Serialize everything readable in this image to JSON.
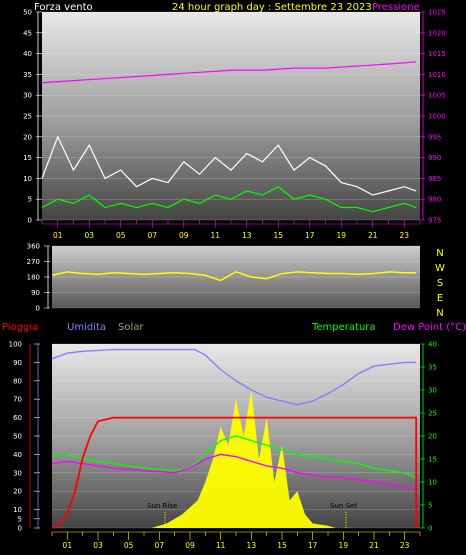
{
  "header": {
    "wind_label": "Forza vento",
    "title": "24 hour graph day : Settembre 23 2023",
    "pressure_label": "Pressione"
  },
  "colors": {
    "wind_gust": "#ffffff",
    "wind_avg": "#00ff00",
    "pressure": "#ff00ff",
    "direction": "#ffff00",
    "rain": "#ff0000",
    "humidity": "#8080ff",
    "temperature": "#00ff00",
    "dewpoint": "#ff00ff",
    "solar": "#ffff00"
  },
  "compass": [
    "N",
    "W",
    "S",
    "E",
    "N"
  ],
  "x_ticks": [
    "01",
    "03",
    "05",
    "07",
    "09",
    "11",
    "13",
    "15",
    "17",
    "19",
    "21",
    "23"
  ],
  "sun_labels": {
    "rise": "Sun Rise",
    "set": "Sun Set"
  },
  "legend": {
    "rain": "Pioggia",
    "humidity": "Umidita",
    "solar": "Solar",
    "temperature": "Temperatura",
    "dewpoint": "Dew Point (°C)"
  },
  "chart_data": [
    {
      "type": "line",
      "x_hours": [
        0,
        23.75
      ],
      "left_axis": {
        "ticks": [
          0,
          5,
          10,
          15,
          20,
          25,
          30,
          35,
          40,
          45,
          50
        ],
        "ylim": [
          0,
          50
        ]
      },
      "right_axis": {
        "ticks": [
          975,
          980,
          985,
          990,
          995,
          1000,
          1005,
          1010,
          1015,
          1020,
          1025
        ],
        "ylim": [
          975,
          1025
        ]
      },
      "series": [
        {
          "name": "Pressione",
          "x": [
            0,
            2,
            4,
            6,
            8,
            10,
            12,
            14,
            16,
            18,
            20,
            22,
            23.75
          ],
          "values": [
            1008,
            1008.5,
            1009,
            1009.5,
            1010,
            1010.5,
            1011,
            1011,
            1011.5,
            1011.5,
            1012,
            1012.5,
            1013
          ]
        },
        {
          "values_hint": "wind gust",
          "x": [
            0,
            1,
            2,
            3,
            4,
            5,
            6,
            7,
            8,
            9,
            10,
            11,
            12,
            13,
            14,
            15,
            16,
            17,
            18,
            19,
            20,
            21,
            22,
            23,
            23.75
          ],
          "values": [
            10,
            20,
            12,
            18,
            10,
            12,
            8,
            10,
            9,
            14,
            11,
            15,
            12,
            16,
            14,
            18,
            12,
            15,
            13,
            9,
            8,
            6,
            7,
            8,
            7
          ]
        },
        {
          "values_hint": "wind average",
          "x": [
            0,
            1,
            2,
            3,
            4,
            5,
            6,
            7,
            8,
            9,
            10,
            11,
            12,
            13,
            14,
            15,
            16,
            17,
            18,
            19,
            20,
            21,
            22,
            23,
            23.75
          ],
          "values": [
            3,
            5,
            4,
            6,
            3,
            4,
            3,
            4,
            3,
            5,
            4,
            6,
            5,
            7,
            6,
            8,
            5,
            6,
            5,
            3,
            3,
            2,
            3,
            4,
            3
          ]
        }
      ]
    },
    {
      "type": "scatter",
      "left_axis": {
        "ticks": [
          0,
          90,
          180,
          270,
          360
        ],
        "ylim": [
          0,
          360
        ]
      },
      "series": [
        {
          "values_hint": "wind direction",
          "x": [
            0,
            1,
            2,
            3,
            4,
            5,
            6,
            7,
            8,
            9,
            10,
            11,
            12,
            13,
            14,
            15,
            16,
            17,
            18,
            19,
            20,
            21,
            22,
            23,
            23.75
          ],
          "values": [
            190,
            210,
            200,
            195,
            205,
            200,
            195,
            200,
            205,
            200,
            190,
            160,
            210,
            180,
            170,
            200,
            210,
            205,
            200,
            200,
            195,
            200,
            210,
            205,
            205
          ]
        }
      ]
    },
    {
      "type": "line",
      "left_axis": {
        "ticks": [
          0,
          5,
          10,
          20,
          30,
          40,
          50,
          60,
          70,
          80,
          90,
          100
        ],
        "ylim": [
          0,
          100
        ]
      },
      "right_axis": {
        "ticks": [
          0,
          5,
          10,
          15,
          20,
          25,
          30,
          35,
          40
        ],
        "ylim": [
          0,
          40
        ]
      },
      "series": [
        {
          "name": "Umidita",
          "x": [
            0,
            1,
            2,
            4,
            6,
            8,
            9.3,
            10,
            11,
            12,
            13,
            14,
            15,
            16,
            17,
            18,
            19,
            20,
            21,
            22,
            23,
            23.75
          ],
          "values": [
            92,
            95,
            96,
            97,
            97,
            97,
            97,
            94,
            86,
            80,
            75,
            71,
            69,
            67,
            69,
            73,
            78,
            84,
            88,
            89,
            90,
            90
          ]
        },
        {
          "name": "Temperatura",
          "x": [
            0,
            1,
            2,
            4,
            6,
            8,
            9,
            10,
            11,
            12,
            13,
            14,
            15,
            16,
            17,
            18,
            19,
            20,
            21,
            22,
            23,
            23.75
          ],
          "values": [
            16,
            16,
            15,
            14,
            13,
            12.5,
            13,
            16,
            19,
            20,
            19,
            18,
            17,
            16,
            15.5,
            15,
            14.5,
            14,
            13,
            12.5,
            12,
            11
          ]
        },
        {
          "name": "Dew Point (°C)",
          "x": [
            0,
            1,
            2,
            4,
            6,
            8,
            9,
            10,
            11,
            12,
            13,
            14,
            15,
            16,
            17,
            18,
            19,
            20,
            21,
            22,
            23,
            23.75
          ],
          "values": [
            14,
            14.5,
            14,
            13,
            12.5,
            12,
            13,
            15,
            16,
            15.5,
            14.5,
            13.5,
            13,
            12,
            11.5,
            11,
            11,
            10.5,
            10,
            9.5,
            9,
            8.5
          ]
        },
        {
          "name": "Pioggia",
          "x": [
            0,
            0.5,
            1,
            1.5,
            2,
            2.5,
            3,
            4,
            6,
            8,
            10,
            12,
            14,
            16,
            18,
            20,
            22,
            23.75
          ],
          "values": [
            0,
            2,
            8,
            20,
            38,
            50,
            58,
            60,
            60,
            60,
            60,
            60,
            60,
            60,
            60,
            60,
            60,
            60
          ]
        },
        {
          "name": "Solar",
          "x": [
            0,
            6.5,
            7.5,
            8.5,
            9.5,
            10,
            10.5,
            11,
            11.5,
            12,
            12.5,
            13,
            13.5,
            14,
            14.5,
            15,
            15.5,
            16,
            16.5,
            17,
            18,
            18.5,
            23.75
          ],
          "values": [
            0,
            0,
            1,
            3,
            6,
            10,
            15,
            22,
            18,
            28,
            20,
            30,
            15,
            24,
            10,
            18,
            6,
            8,
            3,
            1,
            0.5,
            0,
            0
          ]
        }
      ]
    }
  ]
}
